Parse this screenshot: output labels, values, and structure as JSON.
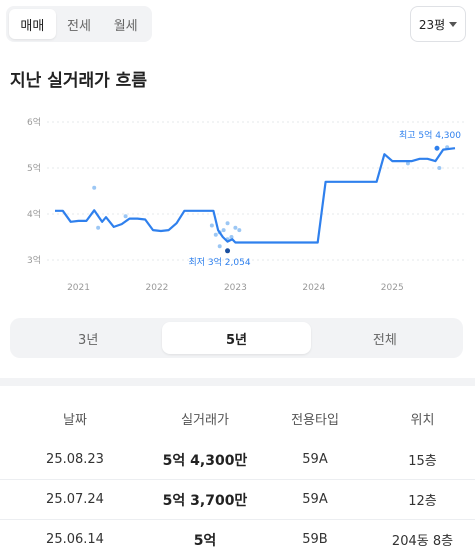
{
  "tabs": [
    {
      "label": "매매",
      "active": true
    },
    {
      "label": "전세",
      "active": false
    },
    {
      "label": "월세",
      "active": false
    }
  ],
  "size_select": {
    "value": "23평",
    "icon": "chevron-down-icon"
  },
  "section_title": "지난 실거래가 흐름",
  "chart_data": {
    "type": "line",
    "ylim": [
      3,
      6
    ],
    "y_ticks": [
      "3억",
      "4억",
      "5억",
      "6억"
    ],
    "x_ticks": [
      "2021",
      "2022",
      "2023",
      "2024",
      "2025"
    ],
    "annotations": {
      "max_label": "최고 5억 4,300",
      "min_label": "최저 3억 2,054"
    },
    "series": [
      {
        "x": [
          2020.7,
          2020.8,
          2020.9,
          2021.0,
          2021.1,
          2021.2,
          2021.3,
          2021.35,
          2021.45,
          2021.55,
          2021.65,
          2021.75,
          2021.85,
          2021.95,
          2022.05,
          2022.15,
          2022.25,
          2022.35,
          2022.45,
          2022.55,
          2022.65,
          2022.72,
          2022.78,
          2022.84,
          2022.9,
          2022.96,
          2023.0,
          2023.2,
          2023.5,
          2023.8,
          2024.05,
          2024.15,
          2024.3,
          2024.5,
          2024.8,
          2024.9,
          2025.0,
          2025.1,
          2025.25,
          2025.35,
          2025.45,
          2025.55,
          2025.65,
          2025.8
        ],
        "y": [
          4.07,
          4.07,
          3.83,
          3.85,
          3.85,
          4.08,
          3.83,
          3.93,
          3.72,
          3.78,
          3.9,
          3.9,
          3.88,
          3.65,
          3.63,
          3.65,
          3.8,
          4.07,
          4.07,
          4.07,
          4.07,
          4.07,
          3.65,
          3.5,
          3.4,
          3.45,
          3.38,
          3.38,
          3.38,
          3.38,
          3.38,
          4.7,
          4.7,
          4.7,
          4.7,
          5.3,
          5.15,
          5.15,
          5.15,
          5.2,
          5.2,
          5.15,
          5.4,
          5.43
        ]
      }
    ],
    "scatter": {
      "x": [
        2021.2,
        2021.6,
        2021.25,
        2022.7,
        2022.75,
        2022.8,
        2022.85,
        2022.9,
        2022.95,
        2023.05,
        2022.8,
        2022.9,
        2023.0,
        2025.2,
        2025.6,
        2025.7
      ],
      "y": [
        4.57,
        3.95,
        3.7,
        3.75,
        3.55,
        3.3,
        3.65,
        3.8,
        3.5,
        3.65,
        3.6,
        3.45,
        3.7,
        5.1,
        5.0,
        5.45
      ]
    }
  },
  "period_tabs": [
    {
      "label": "3년",
      "active": false
    },
    {
      "label": "5년",
      "active": true
    },
    {
      "label": "전체",
      "active": false
    }
  ],
  "table": {
    "headers": [
      "날짜",
      "실거래가",
      "전용타입",
      "위치"
    ],
    "rows": [
      {
        "date": "25.08.23",
        "price": "5억 4,300만",
        "type": "59A",
        "location": "15층"
      },
      {
        "date": "25.07.24",
        "price": "5억 3,700만",
        "type": "59A",
        "location": "12층"
      },
      {
        "date": "25.06.14",
        "price": "5억",
        "type": "59B",
        "location": "204동 8층"
      }
    ]
  },
  "colors": {
    "accent": "#2f80ed",
    "scatter": "#9cc7f4",
    "grid": "#e6e8eb"
  }
}
